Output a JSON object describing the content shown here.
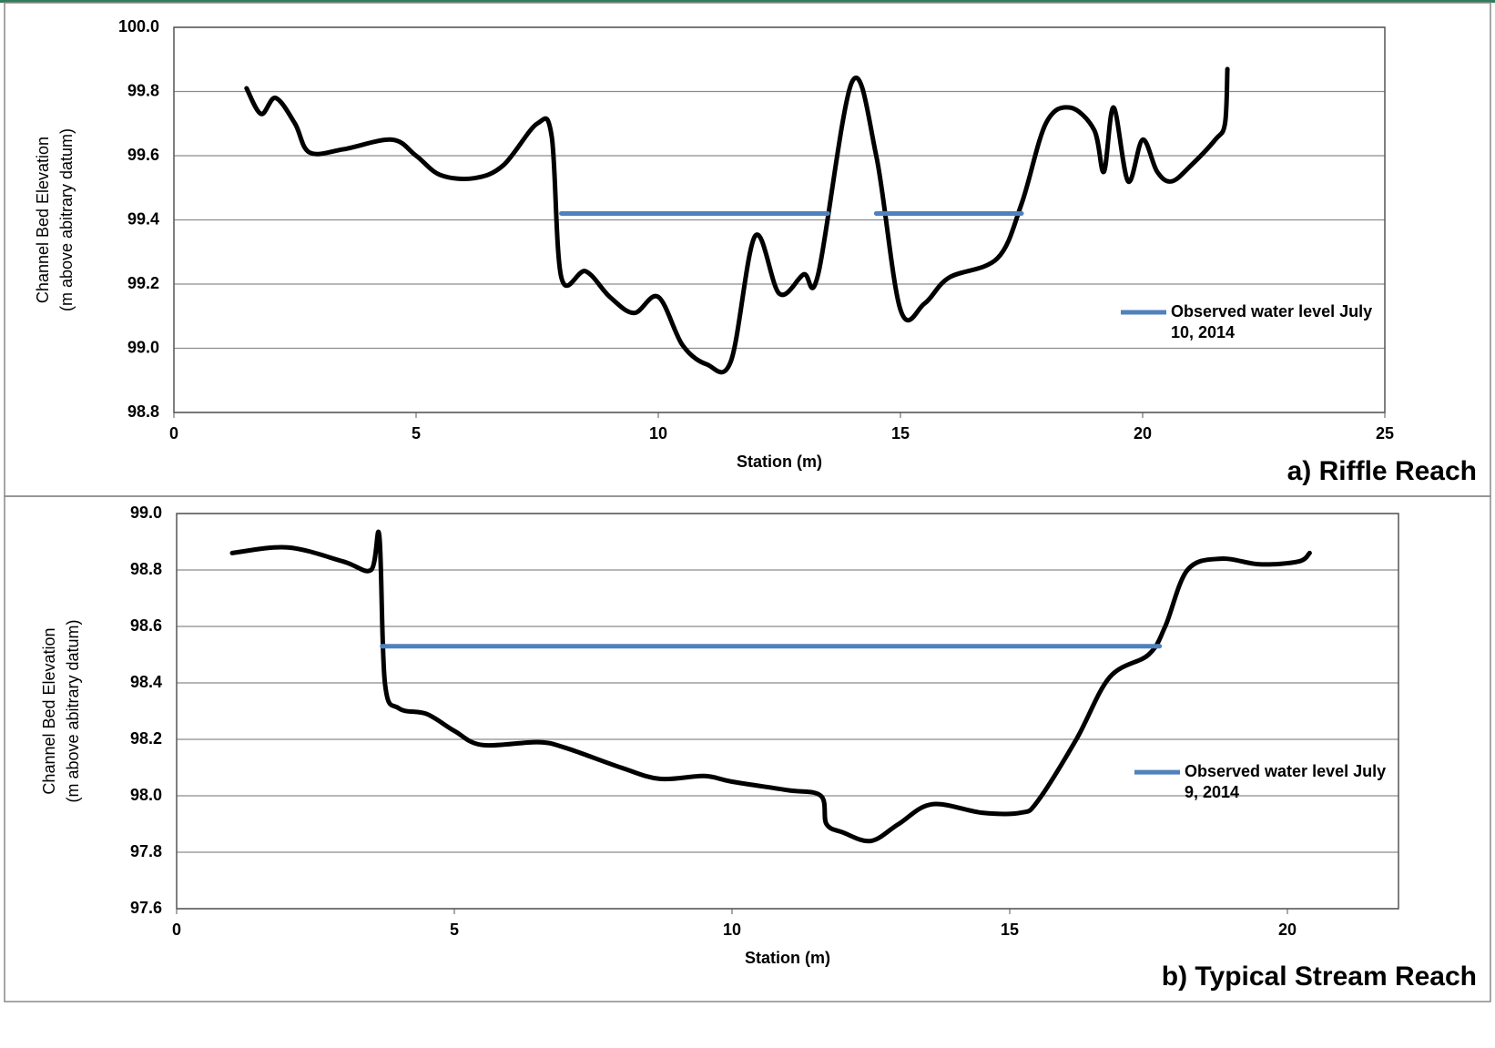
{
  "chart_data": [
    {
      "type": "line",
      "panel_label": "a) Riffle Reach",
      "xlabel": "Station (m)",
      "ylabel": [
        "Channel Bed Elevation",
        "(m above abitrary datum)"
      ],
      "xlim": [
        0,
        25
      ],
      "xticks": [
        0,
        5,
        10,
        15,
        20,
        25
      ],
      "ylim": [
        98.8,
        100
      ],
      "yticks": [
        98.8,
        {
          "value": 99,
          "label": "99.0"
        },
        99.2,
        99.4,
        99.6,
        99.8,
        {
          "value": 100,
          "label": "100.0"
        }
      ],
      "grid": true,
      "legend": "right",
      "series": [
        {
          "color": "#000000",
          "x": [
            1.5,
            1.8,
            2.1,
            2.5,
            2.8,
            3.5,
            4.5,
            5,
            5.5,
            6.2,
            6.8,
            7.5,
            7.8,
            8,
            8.5,
            9,
            9.5,
            10,
            10.5,
            11,
            11.5,
            12,
            12.5,
            13,
            13.3,
            14,
            14.5,
            15,
            15.5,
            16,
            17,
            17.5,
            18,
            18.5,
            19,
            19.2,
            19.4,
            19.7,
            20,
            20.3,
            20.6,
            21,
            21.5,
            21.7,
            21.75
          ],
          "values": [
            99.81,
            99.73,
            99.78,
            99.7,
            99.61,
            99.62,
            99.65,
            99.6,
            99.54,
            99.53,
            99.57,
            99.7,
            99.66,
            99.22,
            99.24,
            99.16,
            99.11,
            99.16,
            99.01,
            98.95,
            98.96,
            99.35,
            99.17,
            99.23,
            99.23,
            99.83,
            99.6,
            99.12,
            99.14,
            99.22,
            99.28,
            99.45,
            99.7,
            99.75,
            99.68,
            99.55,
            99.75,
            99.52,
            99.65,
            99.55,
            99.52,
            99.57,
            99.65,
            99.7,
            99.87
          ]
        },
        {
          "name": "Observed water level July 10, 2014",
          "color": "#4f81bd",
          "x": [
            8,
            13.5,
            14,
            14.5,
            17.5
          ],
          "values": [
            99.42,
            99.42,
            null,
            99.42,
            99.42
          ]
        }
      ]
    },
    {
      "type": "line",
      "panel_label": "b) Typical Stream Reach",
      "xlabel": "Station (m)",
      "ylabel": [
        "Channel Bed Elevation",
        "(m above abitrary datum)"
      ],
      "xlim": [
        0,
        22
      ],
      "xticks": [
        0,
        5,
        10,
        15,
        20
      ],
      "ylim": [
        97.6,
        99
      ],
      "yticks": [
        97.6,
        97.8,
        {
          "value": 98,
          "label": "98.0"
        },
        98.2,
        98.4,
        98.6,
        98.8,
        {
          "value": 99,
          "label": "99.0"
        }
      ],
      "grid": true,
      "legend": "right",
      "series": [
        {
          "color": "#000000",
          "x": [
            1,
            2,
            3,
            3.5,
            3.65,
            3.75,
            4,
            4.5,
            5,
            5.5,
            6.5,
            7,
            8,
            8.7,
            9.5,
            10,
            11,
            11.6,
            11.7,
            12,
            12.5,
            13,
            13.6,
            14.5,
            15.2,
            15.5,
            16.2,
            16.8,
            17.5,
            17.8,
            18.2,
            18.8,
            19.5,
            20.2,
            20.4
          ],
          "values": [
            98.86,
            98.88,
            98.83,
            98.8,
            98.92,
            98.4,
            98.31,
            98.29,
            98.23,
            98.18,
            98.19,
            98.17,
            98.1,
            98.06,
            98.07,
            98.05,
            98.02,
            98,
            97.9,
            97.87,
            97.84,
            97.9,
            97.97,
            97.94,
            97.94,
            97.98,
            98.2,
            98.42,
            98.5,
            98.6,
            98.8,
            98.84,
            98.82,
            98.83,
            98.86
          ]
        },
        {
          "name": "Observed water level July 9, 2014",
          "color": "#4f81bd",
          "x": [
            3.7,
            17.7
          ],
          "values": [
            98.53,
            98.53
          ]
        }
      ]
    }
  ]
}
